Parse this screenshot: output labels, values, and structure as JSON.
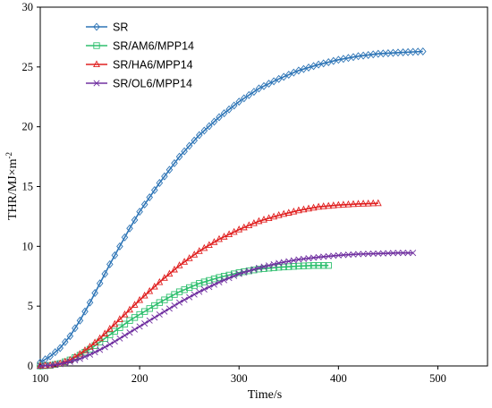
{
  "chart_data": {
    "type": "line",
    "title": "",
    "xlabel": "Time/s",
    "ylabel": "THR/MJ×m",
    "ylabel_sup": "-2",
    "xlim": [
      100,
      550
    ],
    "ylim": [
      0,
      30
    ],
    "xticks": [
      100,
      200,
      300,
      400,
      500
    ],
    "yticks": [
      0,
      5,
      10,
      15,
      20,
      25,
      30
    ],
    "xtick_labels": [
      "100",
      "200",
      "300",
      "400",
      "500"
    ],
    "ytick_labels": [
      "0",
      "5",
      "10",
      "15",
      "20",
      "25",
      "30"
    ],
    "grid": false,
    "legend_position": "top-left",
    "series": [
      {
        "name": "SR",
        "color": "#2e75b6",
        "marker": "diamond",
        "x": [
          100,
          110,
          120,
          130,
          140,
          150,
          160,
          170,
          180,
          190,
          200,
          220,
          240,
          260,
          280,
          300,
          320,
          340,
          360,
          380,
          400,
          420,
          440,
          460,
          485
        ],
        "y": [
          0.3,
          0.8,
          1.5,
          2.5,
          3.8,
          5.3,
          6.9,
          8.5,
          10.0,
          11.5,
          12.9,
          15.3,
          17.5,
          19.3,
          20.8,
          22.1,
          23.2,
          24.0,
          24.7,
          25.2,
          25.6,
          25.9,
          26.1,
          26.2,
          26.3
        ]
      },
      {
        "name": "SR/AM6/MPP14",
        "color": "#2ebf6e",
        "marker": "square",
        "x": [
          100,
          110,
          120,
          130,
          140,
          150,
          160,
          170,
          180,
          190,
          200,
          220,
          240,
          260,
          280,
          300,
          320,
          340,
          360,
          375,
          390
        ],
        "y": [
          0.0,
          0.05,
          0.2,
          0.5,
          0.9,
          1.4,
          2.0,
          2.6,
          3.2,
          3.8,
          4.3,
          5.3,
          6.2,
          6.9,
          7.4,
          7.8,
          8.1,
          8.25,
          8.35,
          8.4,
          8.4
        ]
      },
      {
        "name": "SR/HA6/MPP14",
        "color": "#e02020",
        "marker": "triangle",
        "x": [
          100,
          110,
          120,
          130,
          140,
          150,
          160,
          170,
          180,
          190,
          200,
          220,
          240,
          260,
          280,
          300,
          320,
          340,
          360,
          380,
          400,
          420,
          440
        ],
        "y": [
          0.0,
          0.05,
          0.2,
          0.5,
          1.0,
          1.6,
          2.3,
          3.1,
          3.9,
          4.7,
          5.5,
          7.0,
          8.4,
          9.6,
          10.6,
          11.4,
          12.1,
          12.6,
          13.0,
          13.3,
          13.45,
          13.55,
          13.6
        ]
      },
      {
        "name": "SR/OL6/MPP14",
        "color": "#7030a0",
        "marker": "x",
        "x": [
          100,
          110,
          120,
          130,
          140,
          150,
          160,
          170,
          180,
          190,
          200,
          220,
          240,
          260,
          280,
          300,
          320,
          340,
          360,
          380,
          400,
          420,
          440,
          460,
          475
        ],
        "y": [
          0.0,
          0.05,
          0.15,
          0.35,
          0.6,
          0.95,
          1.35,
          1.8,
          2.3,
          2.8,
          3.3,
          4.3,
          5.3,
          6.2,
          7.0,
          7.7,
          8.2,
          8.6,
          8.9,
          9.1,
          9.25,
          9.35,
          9.4,
          9.45,
          9.45
        ]
      }
    ]
  }
}
